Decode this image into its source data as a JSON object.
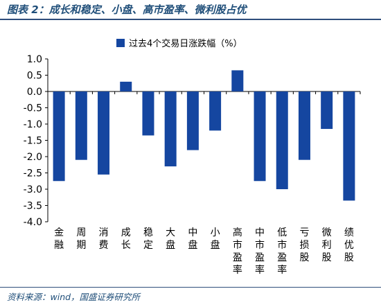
{
  "header": {
    "title": "图表 2：成长和稳定、小盘、高市盈率、微利股占优"
  },
  "footer": {
    "source": "资料来源：wind，国盛证券研究所"
  },
  "colors": {
    "bar": "#1546a0",
    "header_text": "#1f4e79",
    "rule": "#2e4d7b"
  },
  "chart_data": {
    "type": "bar",
    "title": "",
    "legend": {
      "label": "过去4个交易日涨跌幅（%）",
      "position": "top"
    },
    "categories": [
      "金融",
      "周期",
      "消费",
      "成长",
      "稳定",
      "大盘",
      "中盘",
      "小盘",
      "高市盈率",
      "中市盈率",
      "低市盈率",
      "亏损股",
      "微利股",
      "绩优股"
    ],
    "values": [
      -2.75,
      -2.1,
      -2.55,
      0.3,
      -1.35,
      -2.3,
      -1.8,
      -1.2,
      0.65,
      -2.75,
      -3.0,
      -2.1,
      -1.15,
      -3.35
    ],
    "ylim": [
      -4.0,
      1.0
    ],
    "yticks": [
      "1.0",
      "0.5",
      "0.0",
      "-0.5",
      "-1.0",
      "-1.5",
      "-2.0",
      "-2.5",
      "-3.0",
      "-3.5",
      "-4.0"
    ],
    "grid": false,
    "xlabel": "",
    "ylabel": ""
  }
}
